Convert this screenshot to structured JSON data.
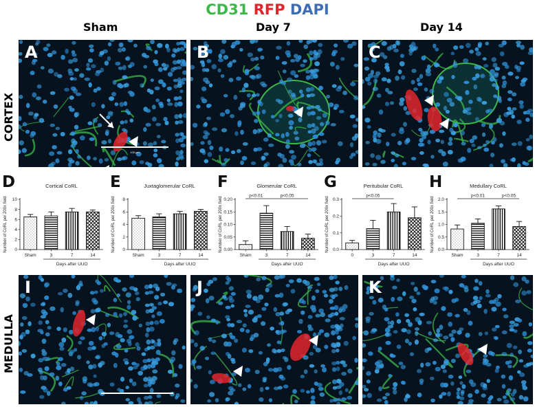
{
  "legend": [
    {
      "text": "CD31",
      "color": "#3cb84a"
    },
    {
      "text": "RFP",
      "color": "#e0262b"
    },
    {
      "text": "DAPI",
      "color": "#3f6db3"
    }
  ],
  "columns": [
    "Sham",
    "Day 7",
    "Day 14"
  ],
  "rows": [
    "CORTEX",
    "MEDULLA"
  ],
  "micrographs": {
    "A": {
      "letter": "A",
      "scale_text": "100 µm"
    },
    "B": {
      "letter": "B"
    },
    "C": {
      "letter": "C"
    },
    "I": {
      "letter": "I"
    },
    "J": {
      "letter": "J"
    },
    "K": {
      "letter": "K"
    }
  },
  "colors": {
    "cd31": "#3cb84a",
    "rfp": "#e0262b",
    "dapi": "#3f6db3",
    "background": "#06121e",
    "nucleus": "#2f8fd6"
  },
  "chart_data": [
    {
      "letter": "D",
      "type": "bar",
      "title": "Cortical CoRL",
      "ylabel": "Number of CoRL per 200x field",
      "xlabel": "Days after UUO",
      "categories": [
        "Sham",
        "3",
        "7",
        "14"
      ],
      "values": [
        6.5,
        6.7,
        7.5,
        7.5
      ],
      "errors": [
        0.5,
        0.8,
        0.7,
        0.4
      ],
      "ylim": [
        0,
        10
      ],
      "yticks": [
        "0",
        "2",
        "4",
        "6",
        "8",
        "10"
      ],
      "patterns": [
        "dots",
        "hlines",
        "vlines",
        "cross"
      ],
      "significance": []
    },
    {
      "letter": "E",
      "type": "bar",
      "title": "Juxtaglomerular CoRL",
      "ylabel": "Number of CoRL per 200x field",
      "xlabel": "Days after UUO",
      "categories": [
        "Sham",
        "3",
        "7",
        "14"
      ],
      "values": [
        5.0,
        5.2,
        5.7,
        6.1
      ],
      "errors": [
        0.4,
        0.5,
        0.4,
        0.3
      ],
      "ylim": [
        0,
        8
      ],
      "yticks": [
        "0",
        "2",
        "4",
        "6",
        "8"
      ],
      "patterns": [
        "dots",
        "hlines",
        "vlines",
        "cross"
      ],
      "significance": []
    },
    {
      "letter": "F",
      "type": "bar",
      "title": "Glomerular CoRL",
      "ylabel": "Number of CoRL per 200x field",
      "xlabel": "Days after UUO",
      "categories": [
        "Sham",
        "3",
        "7",
        "14"
      ],
      "values": [
        0.02,
        0.145,
        0.072,
        0.045
      ],
      "errors": [
        0.015,
        0.03,
        0.02,
        0.017
      ],
      "ylim": [
        0,
        0.2
      ],
      "yticks": [
        "0.00",
        "0.05",
        "0.10",
        "0.15",
        "0.20"
      ],
      "patterns": [
        "dots",
        "hlines",
        "vlines",
        "cross"
      ],
      "significance": [
        {
          "from": 0,
          "to": 1,
          "label": "p<0.01"
        },
        {
          "from": 1,
          "to": 3,
          "label": "p<0.05"
        }
      ]
    },
    {
      "letter": "G",
      "type": "bar",
      "title": "Peritubular CoRL",
      "ylabel": "Number of CoRL per 200x field",
      "xlabel": "Days after UUO",
      "categories": [
        "0",
        "3",
        "7",
        "14"
      ],
      "values": [
        0.04,
        0.125,
        0.225,
        0.19
      ],
      "errors": [
        0.015,
        0.05,
        0.05,
        0.065
      ],
      "ylim": [
        0,
        0.3
      ],
      "yticks": [
        "0.0",
        "0.1",
        "0.2",
        "0.3"
      ],
      "patterns": [
        "dots",
        "hlines",
        "vlines",
        "cross"
      ],
      "significance": [
        {
          "from": 0,
          "to": 2,
          "label": "p<0.05"
        }
      ]
    },
    {
      "letter": "H",
      "type": "bar",
      "title": "Medullary CoRL",
      "ylabel": "Number of CoRL per 200x field",
      "xlabel": "Days after UUO",
      "categories": [
        "Sham",
        "3",
        "7",
        "14"
      ],
      "values": [
        0.82,
        1.05,
        1.62,
        0.92
      ],
      "errors": [
        0.16,
        0.17,
        0.12,
        0.2
      ],
      "ylim": [
        0,
        2.0
      ],
      "yticks": [
        "0.0",
        "0.5",
        "1.0",
        "1.5",
        "2.0"
      ],
      "patterns": [
        "dots",
        "hlines",
        "vlines",
        "cross"
      ],
      "significance": [
        {
          "from": 0,
          "to": 2,
          "label": "p<0.01"
        },
        {
          "from": 2,
          "to": 3,
          "label": "p<0.05"
        }
      ]
    }
  ]
}
